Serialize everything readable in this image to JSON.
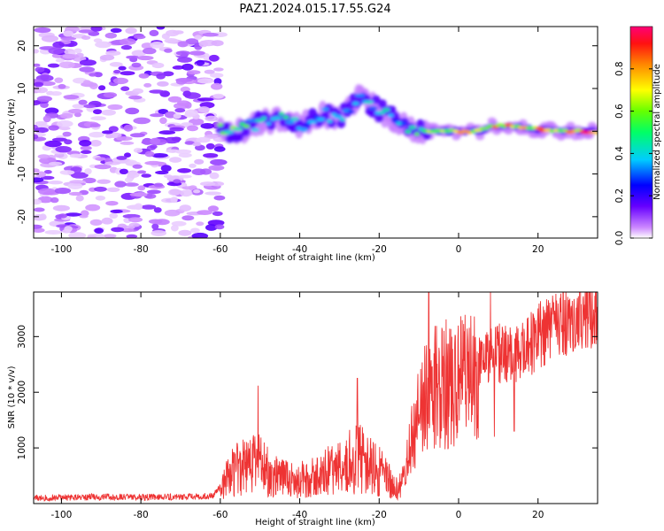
{
  "figure": {
    "title": "PAZ1.2024.015.17.55.G24"
  },
  "chart_data": [
    {
      "type": "heatmap",
      "xlabel": "Height of straight line (km)",
      "ylabel": "Frequency (Hz)",
      "xlim": [
        -107,
        35
      ],
      "ylim": [
        -25,
        24.5
      ],
      "x_ticks": [
        -100,
        -80,
        -60,
        -40,
        -20,
        0,
        20
      ],
      "y_ticks": [
        -20,
        -10,
        0,
        10,
        20
      ],
      "noise_region": {
        "x_range": [
          -107,
          -60
        ],
        "freq_range": [
          -25,
          24.5
        ],
        "amplitude": "low (0.0-0.15)"
      },
      "signal_ridge": {
        "x": [
          -60,
          -55,
          -50,
          -45,
          -40,
          -35,
          -30,
          -25,
          -20,
          -15,
          -10,
          -5,
          0,
          5,
          10,
          15,
          20,
          25,
          30,
          35
        ],
        "frequency": [
          0,
          0,
          2,
          3,
          1,
          4,
          3,
          8,
          5,
          2,
          0,
          0,
          0,
          0,
          1.5,
          1,
          0.5,
          0,
          0,
          0
        ],
        "amplitude": [
          0.5,
          0.55,
          0.4,
          0.45,
          0.35,
          0.35,
          0.4,
          0.35,
          0.4,
          0.35,
          0.55,
          0.6,
          0.7,
          0.7,
          0.75,
          0.8,
          0.8,
          0.8,
          0.8,
          0.85
        ]
      },
      "colorbar": {
        "label": "Normalized spectral amplitude",
        "range": [
          0.0,
          1.0
        ],
        "ticks": [
          "0.0",
          "0.2",
          "0.4",
          "0.6",
          "0.8"
        ],
        "colormap": "gist_rainbow (white-purple-blue-cyan-green-yellow-orange-red-magenta)"
      }
    },
    {
      "type": "line",
      "xlabel": "Height of straight line (km)",
      "ylabel": "SNR (10 * v/v)",
      "xlim": [
        -107,
        35
      ],
      "ylim": [
        0,
        3800
      ],
      "x_ticks": [
        -100,
        -80,
        -60,
        -40,
        -20,
        0,
        20
      ],
      "y_ticks": [
        1000,
        2000,
        3000
      ],
      "series": [
        {
          "color": "#ee3333",
          "x": [
            -107,
            -100,
            -90,
            -80,
            -70,
            -62,
            -58,
            -55,
            -50,
            -45,
            -40,
            -35,
            -30,
            -25,
            -20,
            -15,
            -12,
            -10,
            -8,
            -5,
            0,
            5,
            10,
            15,
            20,
            25,
            30,
            35
          ],
          "y": [
            100,
            110,
            120,
            115,
            120,
            130,
            500,
            650,
            700,
            450,
            420,
            480,
            700,
            800,
            600,
            250,
            1100,
            1600,
            2000,
            2100,
            2200,
            2500,
            2700,
            2650,
            3000,
            3250,
            3400,
            3500
          ],
          "peaks": [
            {
              "x": -50.5,
              "y": 2120
            },
            {
              "x": -25.5,
              "y": 2250
            },
            {
              "x": -7.5,
              "y": 3800
            },
            {
              "x": 8,
              "y": 3800
            },
            {
              "x": 9,
              "y": 1200
            },
            {
              "x": 14,
              "y": 1300
            }
          ]
        }
      ]
    }
  ]
}
